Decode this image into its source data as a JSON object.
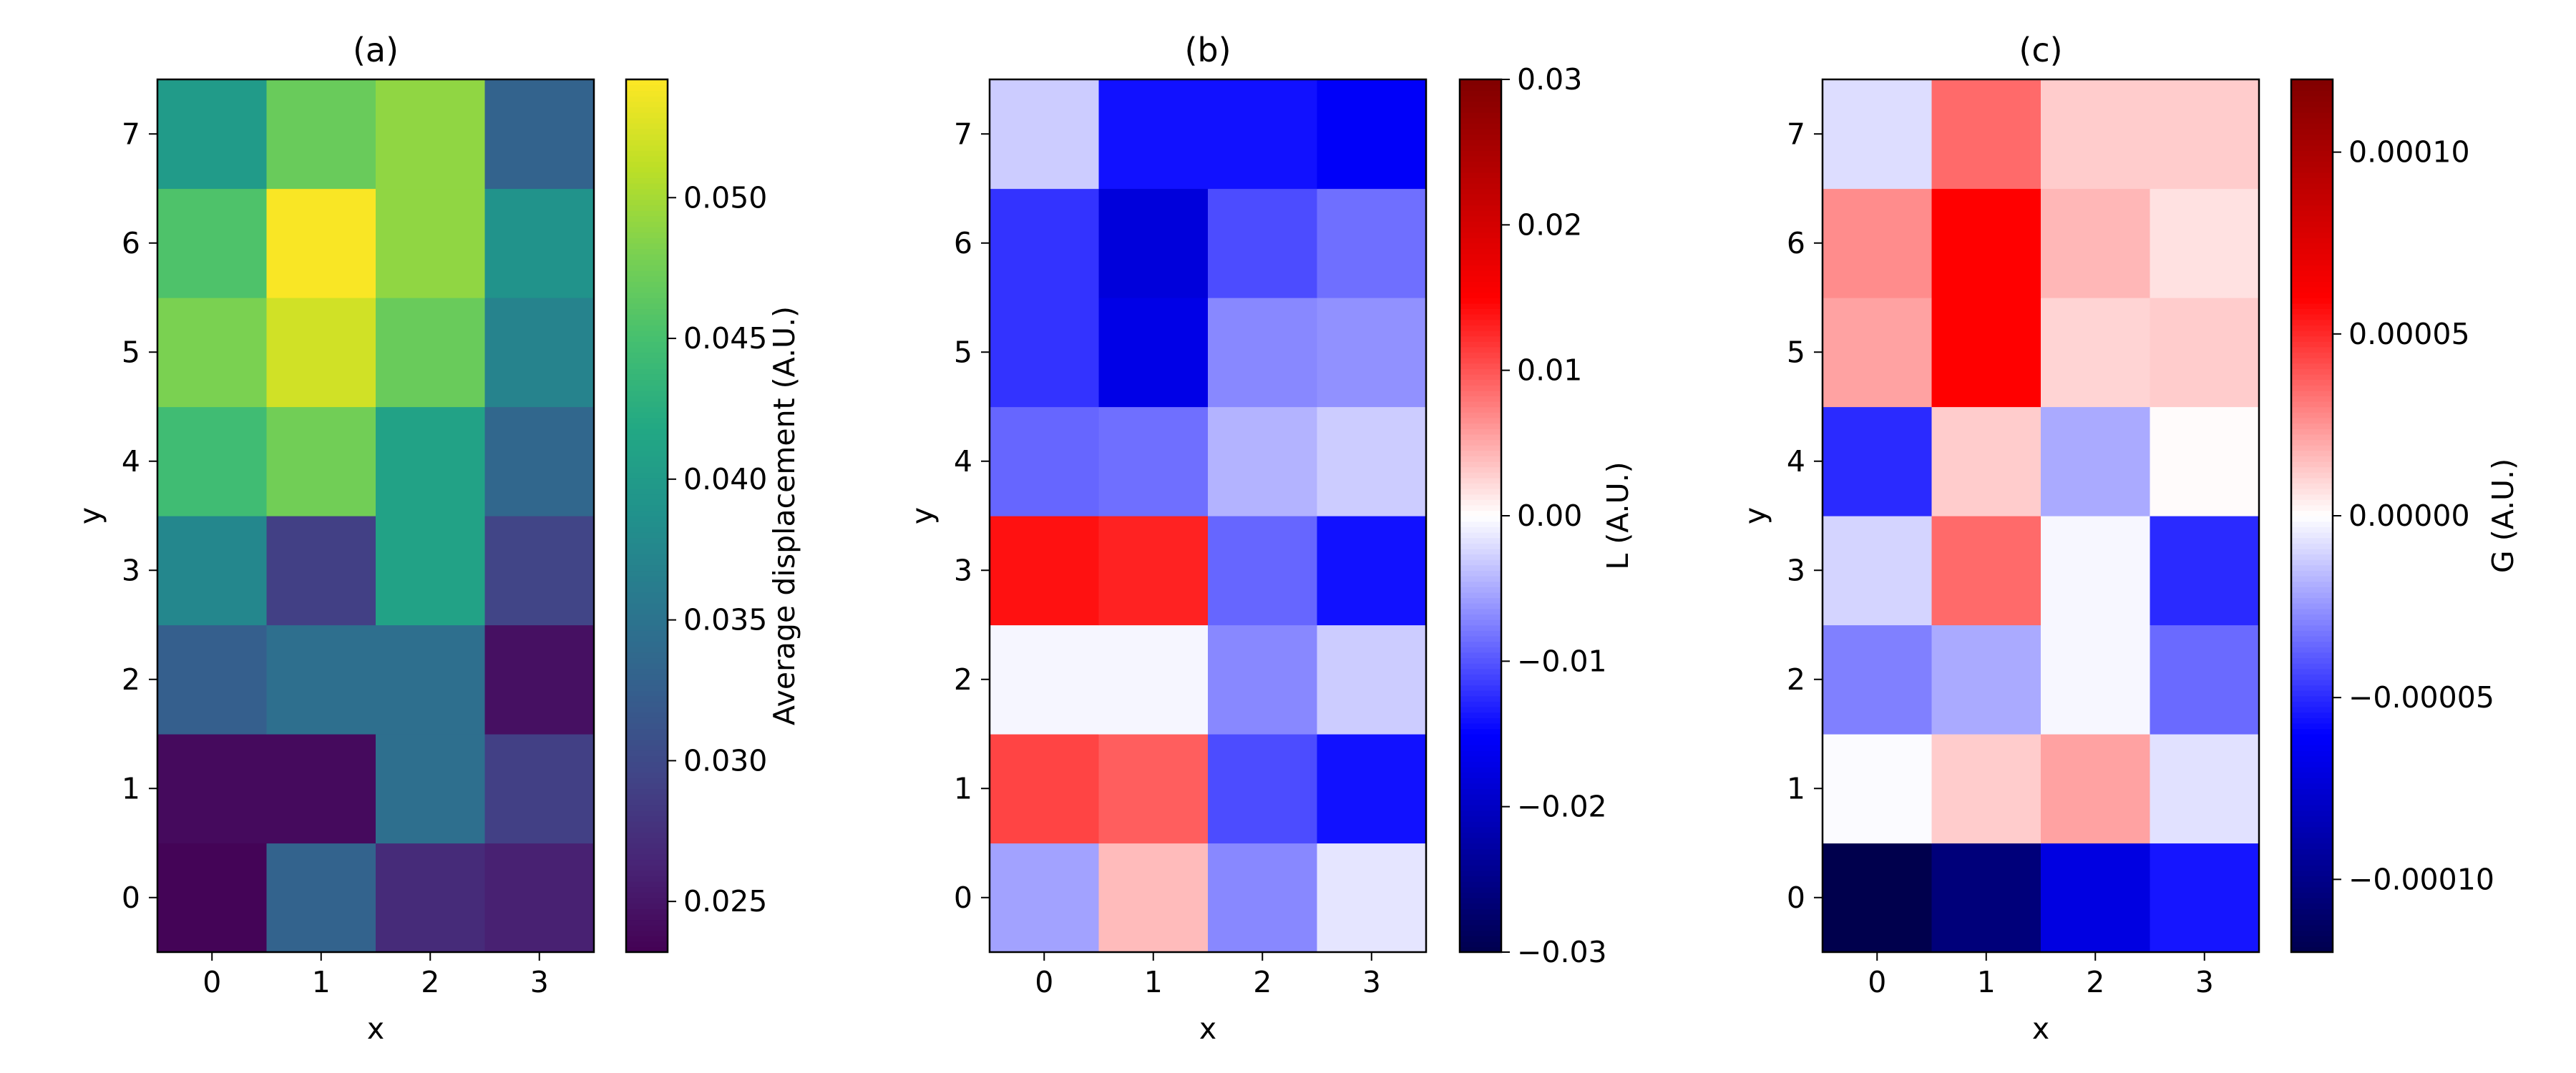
{
  "chart_data": [
    {
      "type": "heatmap",
      "title": "(a)",
      "xlabel": "x",
      "ylabel": "y",
      "x": [
        0,
        1,
        2,
        3
      ],
      "y": [
        0,
        1,
        2,
        3,
        4,
        5,
        6,
        7
      ],
      "x_ticks": [
        "0",
        "1",
        "2",
        "3"
      ],
      "y_ticks": [
        "0",
        "1",
        "2",
        "3",
        "4",
        "5",
        "6",
        "7"
      ],
      "values": [
        [
          0.0235,
          0.033,
          0.027,
          0.026
        ],
        [
          0.024,
          0.024,
          0.0345,
          0.029
        ],
        [
          0.0325,
          0.0345,
          0.0345,
          0.0245
        ],
        [
          0.0375,
          0.029,
          0.041,
          0.0295
        ],
        [
          0.0445,
          0.0475,
          0.041,
          0.0335
        ],
        [
          0.048,
          0.052,
          0.047,
          0.037
        ],
        [
          0.0455,
          0.054,
          0.049,
          0.039
        ],
        [
          0.04,
          0.047,
          0.049,
          0.033
        ]
      ],
      "colormap": "viridis",
      "vmin": 0.0232,
      "vmax": 0.0542,
      "colorbar_label": "Average displacement (A.U.)",
      "colorbar_ticks": [
        0.025,
        0.03,
        0.035,
        0.04,
        0.045,
        0.05
      ],
      "colorbar_tick_labels": [
        "0.025",
        "0.030",
        "0.035",
        "0.040",
        "0.045",
        "0.050"
      ]
    },
    {
      "type": "heatmap",
      "title": "(b)",
      "xlabel": "x",
      "ylabel": "y",
      "x": [
        0,
        1,
        2,
        3
      ],
      "y": [
        0,
        1,
        2,
        3,
        4,
        5,
        6,
        7
      ],
      "x_ticks": [
        "0",
        "1",
        "2",
        "3"
      ],
      "y_ticks": [
        "0",
        "1",
        "2",
        "3",
        "4",
        "5",
        "6",
        "7"
      ],
      "values": [
        [
          -0.0055,
          0.004,
          -0.007,
          -0.0015
        ],
        [
          0.011,
          0.0095,
          -0.0105,
          -0.014
        ],
        [
          -0.0005,
          -0.0005,
          -0.007,
          -0.003
        ],
        [
          0.014,
          0.013,
          -0.009,
          -0.014
        ],
        [
          -0.009,
          -0.0085,
          -0.0045,
          -0.003
        ],
        [
          -0.012,
          -0.017,
          -0.007,
          -0.0065
        ],
        [
          -0.012,
          -0.018,
          -0.0105,
          -0.0085
        ],
        [
          -0.003,
          -0.014,
          -0.014,
          -0.0155
        ]
      ],
      "colormap": "seismic",
      "vmin": -0.03,
      "vmax": 0.03,
      "colorbar_label": "L (A.U.)",
      "colorbar_ticks": [
        -0.03,
        -0.02,
        -0.01,
        0.0,
        0.01,
        0.02,
        0.03
      ],
      "colorbar_tick_labels": [
        "−0.03",
        "−0.02",
        "−0.01",
        "0.00",
        "0.01",
        "0.02",
        "0.03"
      ]
    },
    {
      "type": "heatmap",
      "title": "(c)",
      "xlabel": "x",
      "ylabel": "y",
      "x": [
        0,
        1,
        2,
        3
      ],
      "y": [
        0,
        1,
        2,
        3,
        4,
        5,
        6,
        7
      ],
      "x_ticks": [
        "0",
        "1",
        "2",
        "3"
      ],
      "y_ticks": [
        "0",
        "1",
        "2",
        "3",
        "4",
        "5",
        "6",
        "7"
      ],
      "values": [
        [
          -0.00012,
          -0.000105,
          -7e-05,
          -5.5e-05
        ],
        [
          -1e-06,
          1.2e-05,
          2.2e-05,
          -7e-06
        ],
        [
          -3e-05,
          -2e-05,
          -2e-06,
          -3.5e-05
        ],
        [
          -1e-05,
          3.5e-05,
          -2e-06,
          -5e-05
        ],
        [
          -5e-05,
          1.2e-05,
          -2e-05,
          1e-06
        ],
        [
          2.2e-05,
          6e-05,
          1e-05,
          1.2e-05
        ],
        [
          2.7e-05,
          6e-05,
          1.7e-05,
          7e-06
        ],
        [
          -8e-06,
          3.5e-05,
          1.2e-05,
          1.2e-05
        ]
      ],
      "colormap": "seismic",
      "vmin": -0.00012,
      "vmax": 0.00012,
      "colorbar_label": "G (A.U.)",
      "colorbar_ticks": [
        -0.0001,
        -5e-05,
        0.0,
        5e-05,
        0.0001
      ],
      "colorbar_tick_labels": [
        "−0.00010",
        "−0.00005",
        "0.00000",
        "0.00005",
        "0.00010"
      ]
    }
  ]
}
